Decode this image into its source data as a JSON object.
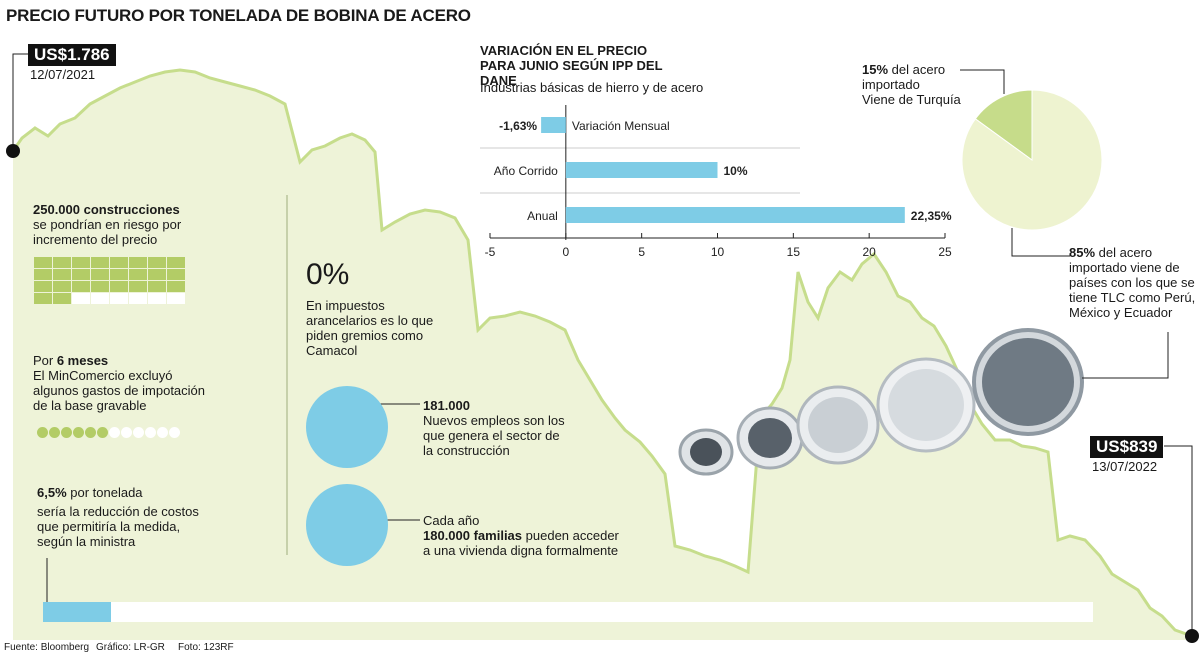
{
  "title": "PRECIO FUTURO POR TONELADA DE BOBINA DE ACERO",
  "colors": {
    "area": "#eef3d8",
    "line": "#c6dd8c",
    "accent_green": "#b3cc66",
    "light_blue": "#7ecce6",
    "pie_main": "#eef3d0",
    "pie_slice": "#c6dc8a"
  },
  "price_start": {
    "value": "US$1.786",
    "date": "12/07/2021"
  },
  "price_end": {
    "value": "US$839",
    "date": "13/07/2022"
  },
  "chart_data": [
    {
      "type": "area",
      "title": "PRECIO FUTURO POR TONELADA DE BOBINA DE ACERO",
      "x_start": "12/07/2021",
      "x_end": "13/07/2022",
      "y_start": 1786,
      "y_end": 839,
      "y_unit": "US$"
    },
    {
      "type": "bar",
      "title": "VARIACIÓN EN EL PRECIO PARA JUNIO SEGÚN IPP DEL DANE",
      "subtitle": "Industrias básicas de hierro y de acero",
      "categories": [
        "Variación Mensual",
        "Año Corrido",
        "Anual"
      ],
      "values": [
        -1.63,
        10,
        22.35
      ],
      "value_labels": [
        "-1,63%",
        "10%",
        "22,35%"
      ],
      "xlim": [
        -5,
        25
      ],
      "ticks": [
        "-5",
        "0",
        "5",
        "10",
        "15",
        "20",
        "25"
      ],
      "color": "#7ecce6"
    },
    {
      "type": "pie",
      "slices": [
        {
          "label": "Viene de Turquía",
          "value": 15
        },
        {
          "label": "Países con TLC",
          "value": 85
        }
      ]
    }
  ],
  "pie_labels": {
    "turkey": {
      "pct": "15%",
      "line1": " del acero",
      "line2": "importado",
      "line3": "Viene de Turquía"
    },
    "tlc": {
      "pct": "85%",
      "line1": " del acero",
      "line2": "importado viene de",
      "line3": "países con los que se",
      "line4": "tiene TLC como Perú,",
      "line5": "México y Ecuador"
    }
  },
  "facts": {
    "constructions": {
      "bold": "250.000 construcciones",
      "line1": "se pondrían en riesgo por",
      "line2": "incremento del precio",
      "filled": 26,
      "total": 32
    },
    "months": {
      "pre": "Por ",
      "bold": "6 meses",
      "line1": "El MinComercio excluyó",
      "line2": "algunos gastos de impotación",
      "line3": "de la base gravable",
      "filled": 6,
      "total": 12
    },
    "reduction": {
      "bold": "6,5%",
      "post": " por tonelada",
      "line1": "sería la reducción de costos",
      "line2": "que permitiría la medida,",
      "line3": "según la ministra",
      "fraction": 0.065
    },
    "taxes": {
      "big": "0%",
      "line1": "En impuestos",
      "line2": "arancelarios es lo que",
      "line3": "piden gremios como",
      "line4": "Camacol"
    },
    "jobs": {
      "bold": "181.000",
      "line1": "Nuevos empleos son los",
      "line2": "que genera el sector de",
      "line3": "la construcción"
    },
    "families": {
      "line1": "Cada año",
      "bold": "180.000 familias",
      "post": " pueden acceder",
      "line2": " a una vivienda digna formalmente"
    }
  },
  "footer": {
    "source": "Fuente: Bloomberg",
    "graphic": "Gráfico: LR-GR",
    "photo": "Foto: 123RF"
  }
}
